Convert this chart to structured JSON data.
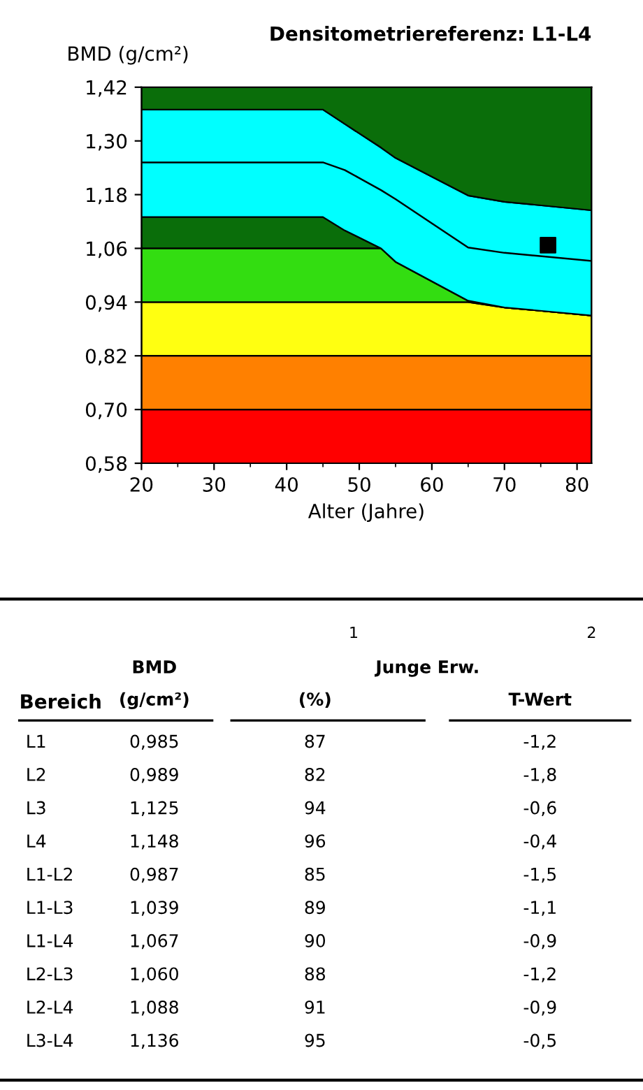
{
  "chart_data": [
    {
      "type": "area",
      "title": "Densitometriereferenz: L1-L4",
      "ylabel": "BMD (g/cm²)",
      "xlabel": "Alter (Jahre)",
      "x": [
        20,
        45,
        48,
        53,
        55,
        65,
        70,
        82
      ],
      "series": [
        {
          "type": "area",
          "color": "#ff0000",
          "values": [
            0.7,
            0.7,
            0.7,
            0.7,
            0.7,
            0.7,
            0.7,
            0.7
          ]
        },
        {
          "type": "area",
          "color": "#ff8000",
          "values": [
            0.82,
            0.82,
            0.82,
            0.82,
            0.82,
            0.82,
            0.82,
            0.82
          ]
        },
        {
          "type": "area",
          "color": "#ffff11",
          "values": [
            0.94,
            0.94,
            0.94,
            0.94,
            0.94,
            0.94,
            0.928,
            0.91
          ]
        },
        {
          "type": "area",
          "color": "#33dd11",
          "values": [
            1.06,
            1.06,
            1.06,
            1.06,
            1.03,
            0.943,
            0.928,
            0.91
          ]
        },
        {
          "type": "area",
          "color": "#0a6e0a",
          "values": [
            1.13,
            1.13,
            1.1,
            1.06,
            1.03,
            0.943,
            0.928,
            0.91
          ]
        },
        {
          "type": "area",
          "color": "#00ffff",
          "values": [
            1.37,
            1.37,
            1.338,
            1.285,
            1.262,
            1.178,
            1.164,
            1.145
          ]
        },
        {
          "type": "area",
          "color": "#0a6e0a",
          "values": [
            1.42,
            1.42,
            1.42,
            1.42,
            1.42,
            1.42,
            1.42,
            1.42
          ]
        },
        {
          "type": "line",
          "color": "#000000",
          "values": [
            1.252,
            1.252,
            1.235,
            1.19,
            1.17,
            1.062,
            1.05,
            1.032
          ]
        },
        {
          "type": "scatter",
          "color": "#000000",
          "marker": "square",
          "x": [
            76
          ],
          "values": [
            1.067
          ]
        }
      ],
      "xlim": [
        20,
        82
      ],
      "xticks": [
        20,
        30,
        40,
        50,
        60,
        70,
        80
      ],
      "ylim": [
        0.58,
        1.42
      ],
      "yticks": [
        {
          "value": 0.58,
          "label": "0,58"
        },
        {
          "value": 0.7,
          "label": "0,70"
        },
        {
          "value": 0.82,
          "label": "0,82"
        },
        {
          "value": 0.94,
          "label": "0,94"
        },
        {
          "value": 1.06,
          "label": "1,06"
        },
        {
          "value": 1.18,
          "label": "1,18"
        },
        {
          "value": 1.3,
          "label": "1,30"
        },
        {
          "value": 1.42,
          "label": "1,42"
        }
      ]
    },
    {
      "type": "other",
      "annotations": [
        "Bereich",
        "1",
        "BMD",
        "(g/cm²)",
        "2",
        "Junge Erw.",
        "(%)",
        "T-Wert"
      ],
      "categories": [
        "L1",
        "L2",
        "L3",
        "L4",
        "L1-L2",
        "L1-L3",
        "L1-L4",
        "L2-L3",
        "L2-L4",
        "L3-L4"
      ],
      "series": [
        {
          "values": [
            0.985,
            0.989,
            1.125,
            1.148,
            0.987,
            1.039,
            1.067,
            1.06,
            1.088,
            1.136
          ],
          "value_labels": [
            "0,985",
            "0,989",
            "1,125",
            "1,148",
            "0,987",
            "1,039",
            "1,067",
            "1,060",
            "1,088",
            "1,136"
          ]
        },
        {
          "values": [
            87,
            82,
            94,
            96,
            85,
            89,
            90,
            88,
            91,
            95
          ],
          "value_labels": [
            "87",
            "82",
            "94",
            "96",
            "85",
            "89",
            "90",
            "88",
            "91",
            "95"
          ]
        },
        {
          "values": [
            -1.2,
            -1.8,
            -0.6,
            -0.4,
            -1.5,
            -1.1,
            -0.9,
            -1.2,
            -0.9,
            -0.5
          ],
          "value_labels": [
            "-1,2",
            "-1,8",
            "-0,6",
            "-0,4",
            "-1,5",
            "-1,1",
            "-0,9",
            "-1,2",
            "-0,9",
            "-0,5"
          ]
        }
      ]
    }
  ]
}
